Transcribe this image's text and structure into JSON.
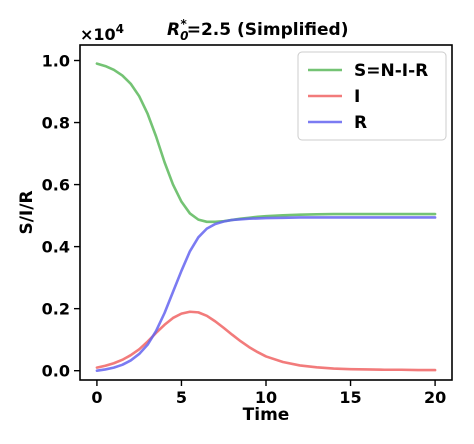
{
  "chart_data": {
    "type": "line",
    "title_prefix": "R",
    "title_subscript": "0",
    "title_superscript": "*",
    "title_suffix": "=2.5 (Simplified)",
    "xlabel": "Time",
    "ylabel": "S/I/R",
    "offset_label": "×10",
    "offset_exponent": "4",
    "xlim": [
      -1,
      21
    ],
    "ylim": [
      -0.03,
      1.05
    ],
    "xticks": [
      0,
      5,
      10,
      15,
      20
    ],
    "xtick_labels": [
      "0",
      "5",
      "10",
      "15",
      "20"
    ],
    "yticks": [
      0.0,
      0.2,
      0.4,
      0.6,
      0.8,
      1.0
    ],
    "ytick_labels": [
      "0.0",
      "0.2",
      "0.4",
      "0.6",
      "0.8",
      "1.0"
    ],
    "grid": false,
    "legend_position": "upper right",
    "x": [
      0,
      0.5,
      1,
      1.5,
      2,
      2.5,
      3,
      3.5,
      4,
      4.5,
      5,
      5.5,
      6,
      6.5,
      7,
      7.5,
      8,
      8.5,
      9,
      9.5,
      10,
      11,
      12,
      13,
      14,
      15,
      16,
      17,
      18,
      19,
      20
    ],
    "series": [
      {
        "name": "S=N-I-R",
        "color": "#5cb85c",
        "values": [
          0.99,
          0.982,
          0.97,
          0.952,
          0.925,
          0.885,
          0.828,
          0.755,
          0.672,
          0.6,
          0.545,
          0.507,
          0.487,
          0.48,
          0.48,
          0.482,
          0.486,
          0.49,
          0.493,
          0.496,
          0.498,
          0.501,
          0.503,
          0.504,
          0.505,
          0.505,
          0.505,
          0.505,
          0.505,
          0.505,
          0.505
        ]
      },
      {
        "name": "I",
        "color": "#f06464",
        "values": [
          0.01,
          0.016,
          0.024,
          0.035,
          0.05,
          0.069,
          0.094,
          0.122,
          0.148,
          0.17,
          0.184,
          0.19,
          0.188,
          0.177,
          0.159,
          0.138,
          0.116,
          0.095,
          0.076,
          0.06,
          0.046,
          0.028,
          0.017,
          0.011,
          0.007,
          0.005,
          0.004,
          0.003,
          0.003,
          0.002,
          0.002
        ]
      },
      {
        "name": "R",
        "color": "#6464f0",
        "values": [
          0.0,
          0.004,
          0.01,
          0.019,
          0.033,
          0.054,
          0.084,
          0.128,
          0.186,
          0.254,
          0.322,
          0.385,
          0.43,
          0.458,
          0.473,
          0.481,
          0.486,
          0.488,
          0.49,
          0.491,
          0.492,
          0.493,
          0.494,
          0.494,
          0.494,
          0.494,
          0.494,
          0.494,
          0.494,
          0.494,
          0.494
        ]
      }
    ]
  }
}
